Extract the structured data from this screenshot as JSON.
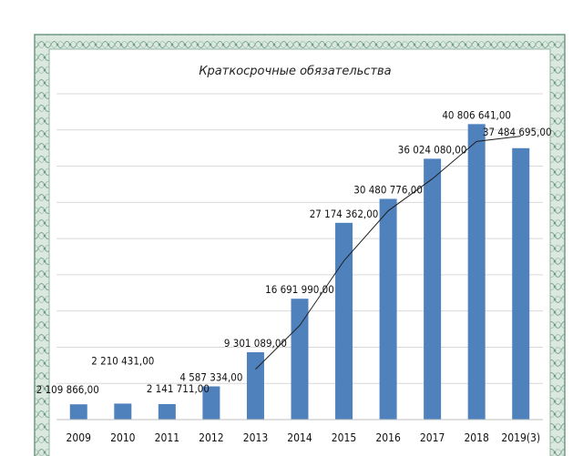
{
  "chart_data": {
    "type": "bar",
    "title": "Краткосрочные обязательства",
    "xlabel": "",
    "ylabel": "",
    "categories": [
      "2009",
      "2010",
      "2011",
      "2012",
      "2013",
      "2014",
      "2015",
      "2016",
      "2017",
      "2018",
      "2019(3)"
    ],
    "series": [
      {
        "values": [
          2109866,
          2210431,
          2141711,
          4587334,
          9301089,
          16691990,
          27174362,
          30480776,
          36024080,
          40806641,
          37484695
        ]
      }
    ],
    "data_labels": [
      "2 109 866,00",
      "2 210 431,00",
      "2 141 711,00",
      "4 587 334,00",
      "9 301 089,00",
      "16 691 990,00",
      "27 174 362,00",
      "30 480 776,00",
      "36 024 080,00",
      "40 806 641,00",
      "37 484 695,00"
    ],
    "trendline": {
      "type": "moving-average",
      "from_category": "2013"
    },
    "ylim": [
      0,
      45000000
    ],
    "grid": true,
    "legend": "none",
    "colors": {
      "bar": "#4f81bd",
      "grid": "#d9d9d9",
      "trend": "#1f1f1f",
      "border": "#8fb3a2"
    }
  }
}
